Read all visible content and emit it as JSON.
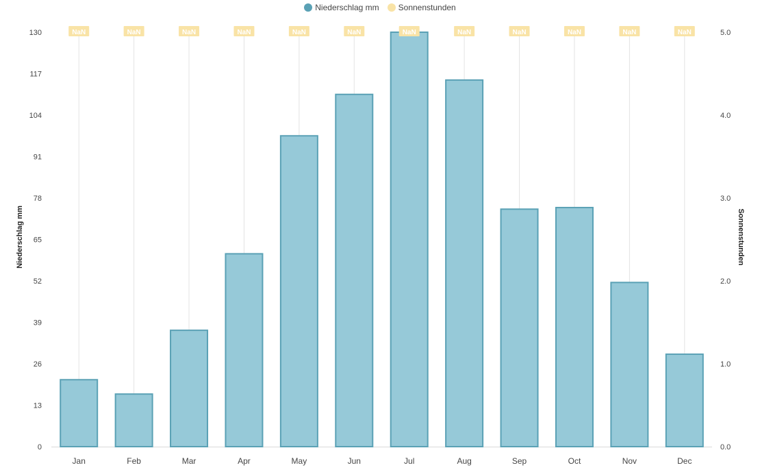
{
  "legend": {
    "items": [
      {
        "label": "Niederschlag mm",
        "color": "#5aa1b5"
      },
      {
        "label": "Sonnenstunden",
        "color": "#f9e3a6"
      }
    ]
  },
  "colors": {
    "bar_fill": "#96c9d8",
    "bar_stroke": "#5aa1b5",
    "sun_line": "#e3e3e3",
    "sun_label_bg": "#f9e3a6",
    "axis_line": "#d9d9d9"
  },
  "chart_data": {
    "type": "bar",
    "title": "",
    "categories": [
      "Jan",
      "Feb",
      "Mar",
      "Apr",
      "May",
      "Jun",
      "Jul",
      "Aug",
      "Sep",
      "Oct",
      "Nov",
      "Dec"
    ],
    "series": [
      {
        "name": "Niederschlag mm",
        "axis": "left",
        "values": [
          21,
          16.5,
          36.5,
          60.5,
          97.5,
          110.5,
          130,
          115,
          74.5,
          75,
          51.5,
          29
        ]
      },
      {
        "name": "Sonnenstunden",
        "axis": "right",
        "values": [
          null,
          null,
          null,
          null,
          null,
          null,
          null,
          null,
          null,
          null,
          null,
          null
        ],
        "labels": [
          "NaN",
          "NaN",
          "NaN",
          "NaN",
          "NaN",
          "NaN",
          "NaN",
          "NaN",
          "NaN",
          "NaN",
          "NaN",
          "NaN"
        ]
      }
    ],
    "ylabel_left": "Niederschlag mm",
    "ylabel_right": "Sonnenstunden",
    "ylim_left": [
      0,
      130
    ],
    "yticks_left": [
      "0",
      "13",
      "26",
      "39",
      "52",
      "65",
      "78",
      "91",
      "104",
      "117",
      "130"
    ],
    "ylim_right": [
      0,
      5
    ],
    "yticks_right": [
      "0.0",
      "1.0",
      "2.0",
      "3.0",
      "4.0",
      "5.0"
    ],
    "grid": false,
    "legend_position": "top-center"
  }
}
